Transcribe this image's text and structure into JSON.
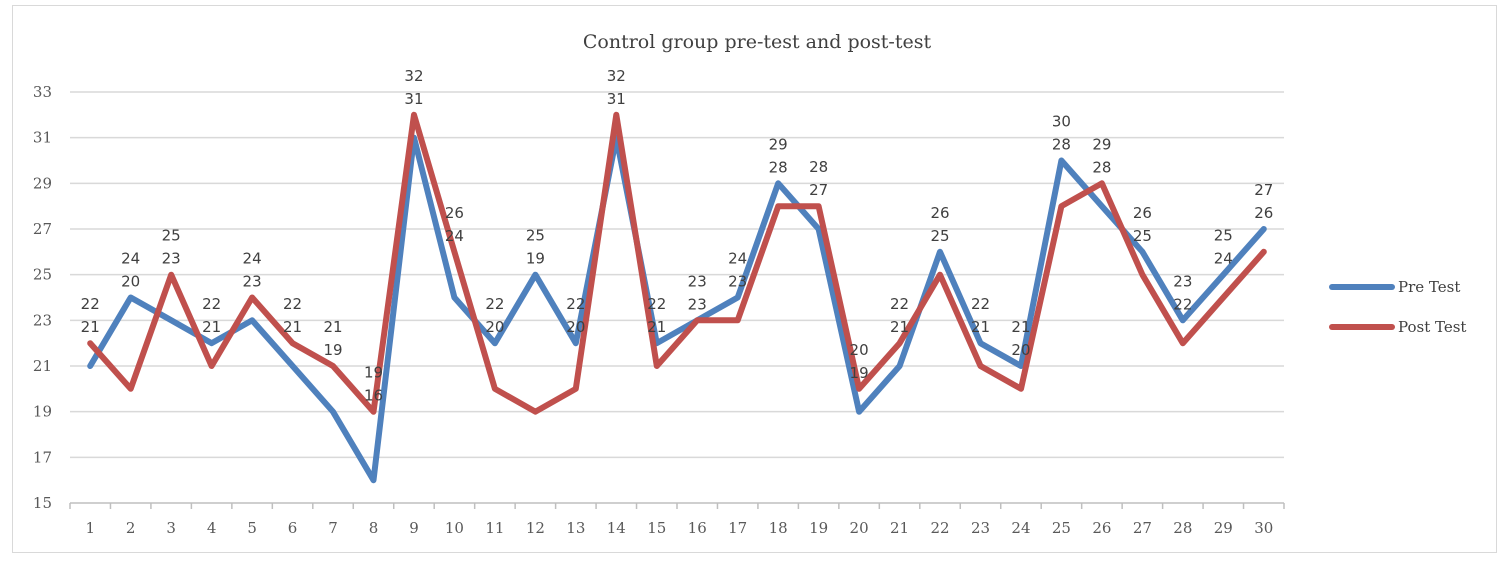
{
  "chart_data": {
    "type": "line",
    "title": "Control group pre-test and post-test",
    "x": [
      "1",
      "2",
      "3",
      "4",
      "5",
      "6",
      "7",
      "8",
      "9",
      "10",
      "11",
      "12",
      "13",
      "14",
      "15",
      "16",
      "17",
      "18",
      "19",
      "20",
      "21",
      "22",
      "23",
      "24",
      "25",
      "26",
      "27",
      "28",
      "29",
      "30"
    ],
    "ylim": [
      15,
      33
    ],
    "yticks": [
      "15",
      "17",
      "19",
      "21",
      "23",
      "25",
      "27",
      "29",
      "31",
      "33"
    ],
    "grid": true,
    "legend": "right",
    "series": [
      {
        "name": "Pre Test",
        "color": "#4f81bd",
        "values": [
          21,
          24,
          23,
          22,
          23,
          21,
          19,
          16,
          31,
          24,
          22,
          25,
          22,
          31,
          22,
          23,
          24,
          29,
          27,
          19,
          21,
          26,
          22,
          21,
          30,
          28,
          26,
          23,
          25,
          27
        ]
      },
      {
        "name": "Post Test",
        "color": "#c0504d",
        "values": [
          22,
          20,
          25,
          21,
          24,
          22,
          21,
          19,
          32,
          26,
          20,
          19,
          20,
          32,
          21,
          23,
          23,
          28,
          28,
          20,
          22,
          25,
          21,
          20,
          28,
          29,
          25,
          22,
          24,
          26
        ]
      }
    ]
  }
}
